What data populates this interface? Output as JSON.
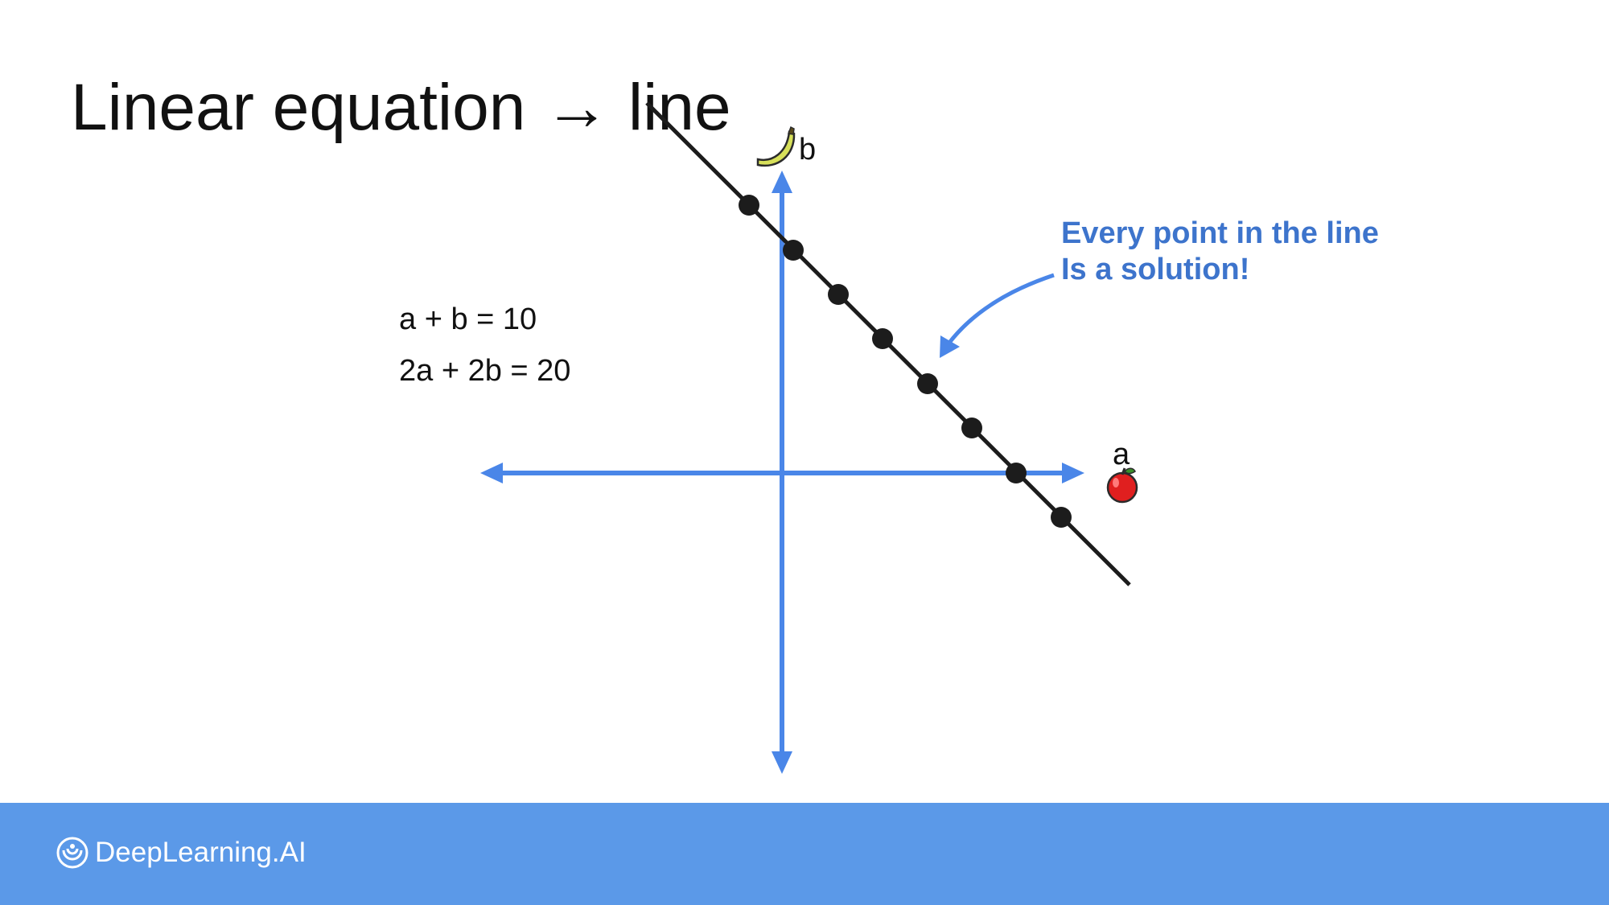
{
  "slide": {
    "title": "Linear equation → line",
    "equations": [
      "a + b = 10",
      "2a + 2b = 20"
    ],
    "callout_lines": [
      "Every point in the line",
      "Is a solution!"
    ],
    "axis_labels": {
      "vertical": "b",
      "horizontal": "a"
    },
    "icons": {
      "vertical_axis": "banana-icon",
      "horizontal_axis": "apple-icon"
    }
  },
  "colors": {
    "axis": "#4a86e8",
    "line": "#1c1c1c",
    "points": "#1c1c1c",
    "callout": "#3d74cc",
    "footer": "#5b99e8"
  },
  "footer": {
    "brand": "DeepLearning.AI",
    "logo_icon": "deeplearning-ai-logo-icon"
  }
}
